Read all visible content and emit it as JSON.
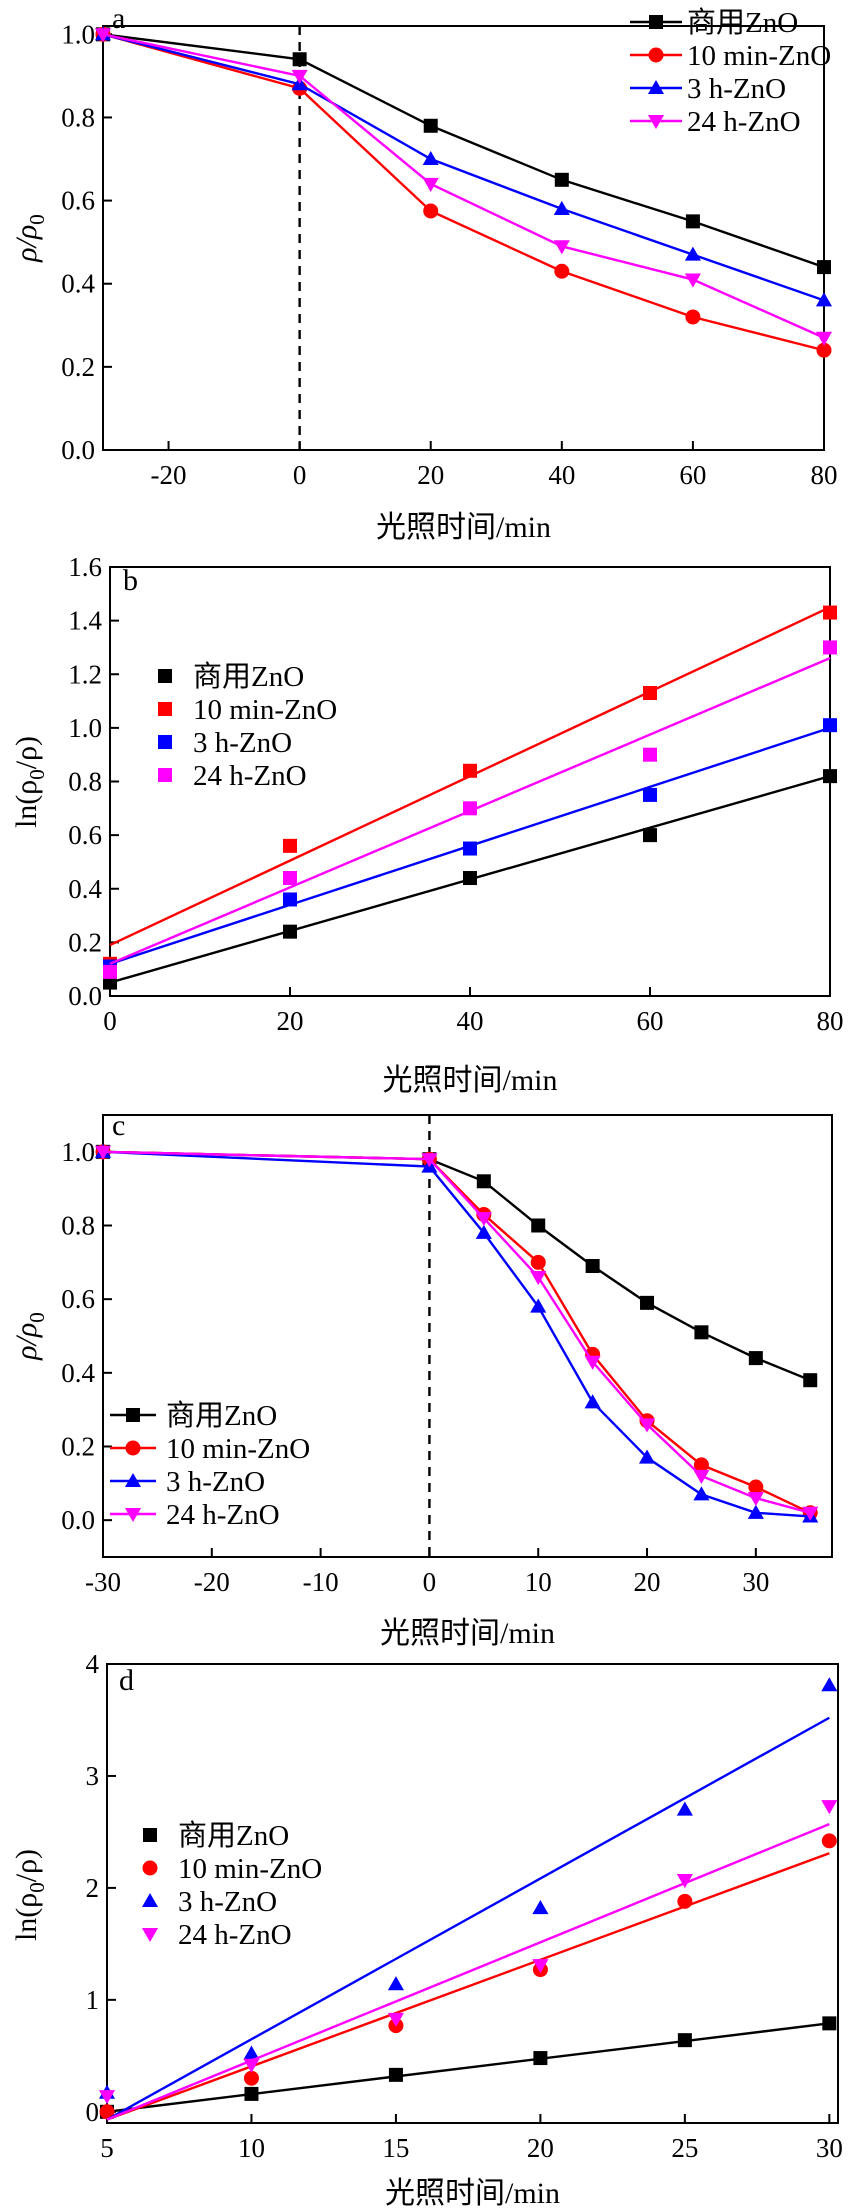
{
  "chart_data": [
    {
      "type": "line",
      "panel_label": "a",
      "xlabel": "光照时间/min",
      "ylabel": "ρ/ρ0",
      "ylabel_main": "ρ/ρ",
      "ylabel_sub": "0",
      "xlim": [
        -30,
        80
      ],
      "ylim": [
        0,
        1.02
      ],
      "xticks": [
        -20,
        0,
        20,
        40,
        60,
        80
      ],
      "yticks": [
        0.0,
        0.2,
        0.4,
        0.6,
        0.8,
        1.0
      ],
      "ytick_labels": [
        "0.0",
        "0.2",
        "0.4",
        "0.6",
        "0.8",
        "1.0"
      ],
      "dashed_vline_x": 0,
      "legend_position": "top-right",
      "series": [
        {
          "name": "商用ZnO",
          "color": "#000000",
          "marker": "square",
          "x": [
            -30,
            0,
            20,
            40,
            60,
            80
          ],
          "y": [
            1.0,
            0.94,
            0.78,
            0.65,
            0.55,
            0.44
          ]
        },
        {
          "name": "10 min-ZnO",
          "color": "#ff0000",
          "marker": "circle",
          "x": [
            -30,
            0,
            20,
            40,
            60,
            80
          ],
          "y": [
            1.0,
            0.87,
            0.575,
            0.43,
            0.32,
            0.24
          ]
        },
        {
          "name": "3 h-ZnO",
          "color": "#0000ff",
          "marker": "triangle-up",
          "x": [
            -30,
            0,
            20,
            40,
            60,
            80
          ],
          "y": [
            1.0,
            0.88,
            0.7,
            0.58,
            0.47,
            0.36
          ]
        },
        {
          "name": "24 h-ZnO",
          "color": "#ff00ff",
          "marker": "triangle-down",
          "x": [
            -30,
            0,
            20,
            40,
            60,
            80
          ],
          "y": [
            1.0,
            0.9,
            0.64,
            0.49,
            0.41,
            0.27
          ]
        }
      ]
    },
    {
      "type": "scatter",
      "panel_label": "b",
      "xlabel": "光照时间/min",
      "ylabel": "ln(ρ0/ρ)",
      "ylabel_pre": "ln(ρ",
      "ylabel_sub": "0",
      "ylabel_post": "/ρ)",
      "xlim": [
        0,
        80
      ],
      "ylim": [
        0,
        1.6
      ],
      "xticks": [
        0,
        20,
        40,
        60,
        80
      ],
      "yticks": [
        0.0,
        0.2,
        0.4,
        0.6,
        0.8,
        1.0,
        1.2,
        1.4,
        1.6
      ],
      "ytick_labels": [
        "0.0",
        "0.2",
        "0.4",
        "0.6",
        "0.8",
        "1.0",
        "1.2",
        "1.4",
        "1.6"
      ],
      "legend_position": "center-left",
      "series": [
        {
          "name": "商用ZnO",
          "color": "#000000",
          "marker": "square",
          "x": [
            0,
            20,
            40,
            60,
            80
          ],
          "y": [
            0.05,
            0.24,
            0.44,
            0.6,
            0.82
          ],
          "fit": [
            [
              0,
              0.05
            ],
            [
              80,
              0.82
            ]
          ]
        },
        {
          "name": "10 min-ZnO",
          "color": "#ff0000",
          "marker": "square",
          "x": [
            0,
            20,
            40,
            60,
            80
          ],
          "y": [
            0.12,
            0.56,
            0.84,
            1.13,
            1.43
          ],
          "fit": [
            [
              0,
              0.19
            ],
            [
              80,
              1.45
            ]
          ]
        },
        {
          "name": "3 h-ZnO",
          "color": "#0000ff",
          "marker": "square",
          "x": [
            0,
            20,
            40,
            60,
            80
          ],
          "y": [
            0.11,
            0.36,
            0.55,
            0.75,
            1.01
          ],
          "fit": [
            [
              0,
              0.12
            ],
            [
              80,
              1.0
            ]
          ]
        },
        {
          "name": "24 h-ZnO",
          "color": "#ff00ff",
          "marker": "square",
          "x": [
            0,
            20,
            40,
            60,
            80
          ],
          "y": [
            0.09,
            0.44,
            0.7,
            0.9,
            1.3
          ],
          "fit": [
            [
              0,
              0.12
            ],
            [
              80,
              1.26
            ]
          ]
        }
      ]
    },
    {
      "type": "line",
      "panel_label": "c",
      "xlabel": "光照时间/min",
      "ylabel": "ρ/ρ0",
      "ylabel_main": "ρ/ρ",
      "ylabel_sub": "0",
      "xlim": [
        -30,
        37
      ],
      "ylim": [
        -0.1,
        1.1
      ],
      "xticks": [
        -30,
        -20,
        -10,
        0,
        10,
        20,
        30
      ],
      "yticks": [
        0.0,
        0.2,
        0.4,
        0.6,
        0.8,
        1.0
      ],
      "ytick_labels": [
        "0.0",
        "0.2",
        "0.4",
        "0.6",
        "0.8",
        "1.0"
      ],
      "dashed_vline_x": 0,
      "legend_position": "bottom-left",
      "series": [
        {
          "name": "商用ZnO",
          "color": "#000000",
          "marker": "square",
          "x": [
            -30,
            0,
            5,
            10,
            15,
            20,
            25,
            30,
            35
          ],
          "y": [
            1.0,
            0.98,
            0.92,
            0.8,
            0.69,
            0.59,
            0.51,
            0.44,
            0.38
          ]
        },
        {
          "name": "10 min-ZnO",
          "color": "#ff0000",
          "marker": "circle",
          "x": [
            -30,
            0,
            5,
            10,
            15,
            20,
            25,
            30,
            35
          ],
          "y": [
            1.0,
            0.98,
            0.83,
            0.7,
            0.45,
            0.27,
            0.15,
            0.09,
            0.02
          ]
        },
        {
          "name": "3 h-ZnO",
          "color": "#0000ff",
          "marker": "triangle-up",
          "x": [
            -30,
            0,
            5,
            10,
            15,
            20,
            25,
            30,
            35
          ],
          "y": [
            1.0,
            0.96,
            0.78,
            0.58,
            0.32,
            0.17,
            0.07,
            0.02,
            0.01
          ]
        },
        {
          "name": "24 h-ZnO",
          "color": "#ff00ff",
          "marker": "triangle-down",
          "x": [
            -30,
            0,
            5,
            10,
            15,
            20,
            25,
            30,
            35
          ],
          "y": [
            1.0,
            0.98,
            0.82,
            0.66,
            0.43,
            0.26,
            0.12,
            0.06,
            0.02
          ]
        }
      ]
    },
    {
      "type": "scatter",
      "panel_label": "d",
      "xlabel": "光照时间/min",
      "ylabel": "ln(ρ0/ρ)",
      "ylabel_pre": "ln(ρ",
      "ylabel_sub": "0",
      "ylabel_post": "/ρ)",
      "xlim": [
        5,
        30.3
      ],
      "ylim": [
        -0.1,
        4.0
      ],
      "xticks": [
        5,
        10,
        15,
        20,
        25,
        30
      ],
      "yticks": [
        0,
        1,
        2,
        3,
        4
      ],
      "ytick_labels": [
        "0",
        "1",
        "2",
        "3",
        "4"
      ],
      "legend_position": "center-left",
      "series": [
        {
          "name": "商用ZnO",
          "color": "#000000",
          "marker": "square",
          "x": [
            5,
            10,
            15,
            20,
            25,
            30
          ],
          "y": [
            0.0,
            0.16,
            0.33,
            0.48,
            0.64,
            0.79
          ],
          "fit": [
            [
              5,
              0.0
            ],
            [
              30,
              0.79
            ]
          ]
        },
        {
          "name": "10 min-ZnO",
          "color": "#ff0000",
          "marker": "circle",
          "x": [
            5,
            10,
            15,
            20,
            25,
            30
          ],
          "y": [
            0.0,
            0.3,
            0.77,
            1.27,
            1.88,
            2.42
          ],
          "fit": [
            [
              5,
              -0.07
            ],
            [
              30,
              2.31
            ]
          ]
        },
        {
          "name": "3 h-ZnO",
          "color": "#0000ff",
          "marker": "triangle-up",
          "x": [
            5,
            10,
            15,
            20,
            25,
            30
          ],
          "y": [
            0.17,
            0.52,
            1.14,
            1.82,
            2.7,
            3.81
          ],
          "fit": [
            [
              5,
              -0.07
            ],
            [
              30,
              3.52
            ]
          ]
        },
        {
          "name": "24 h-ZnO",
          "color": "#ff00ff",
          "marker": "triangle-down",
          "x": [
            5,
            10,
            15,
            20,
            25,
            30
          ],
          "y": [
            0.14,
            0.42,
            0.83,
            1.31,
            2.07,
            2.73
          ],
          "fit": [
            [
              5,
              -0.07
            ],
            [
              30,
              2.57
            ]
          ]
        }
      ]
    }
  ]
}
